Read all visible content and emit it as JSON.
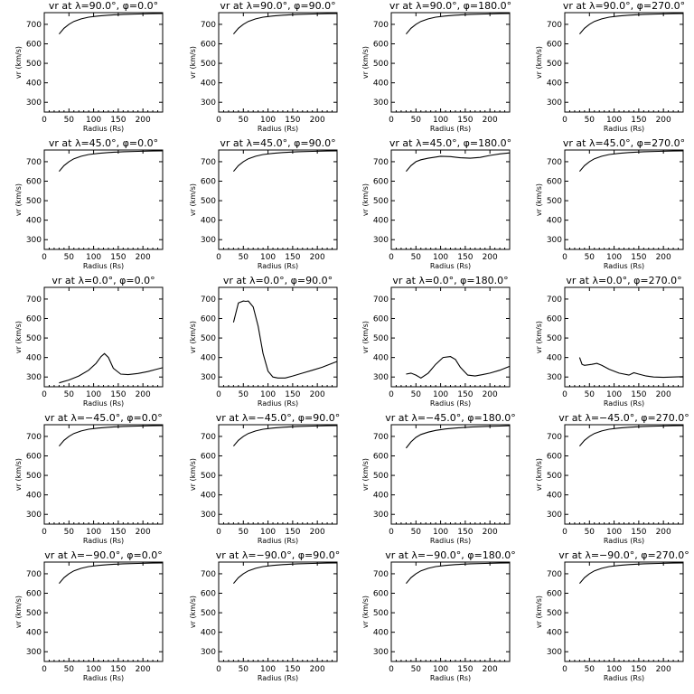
{
  "figure": {
    "xlabel": "Radius (Rs)",
    "ylabel": "vr (km/s)",
    "xlim": [
      0,
      240
    ],
    "ylim": [
      250,
      760
    ],
    "xticks": [
      0,
      50,
      100,
      150,
      200
    ],
    "yticks": [
      300,
      400,
      500,
      600,
      700
    ]
  },
  "chart_data": [
    {
      "type": "line",
      "title": "vr at λ=90.0°, φ=0.0°",
      "xlabel": "Radius (Rs)",
      "ylabel": "vr (km/s)",
      "xlim": [
        0,
        240
      ],
      "ylim": [
        250,
        760
      ],
      "series": [
        {
          "x": [
            30,
            40,
            50,
            60,
            75,
            90,
            110,
            130,
            160,
            190,
            220,
            240
          ],
          "y": [
            650,
            680,
            700,
            715,
            728,
            737,
            743,
            747,
            751,
            753,
            755,
            756
          ]
        }
      ]
    },
    {
      "type": "line",
      "title": "vr at λ=90.0°, φ=90.0°",
      "xlabel": "Radius (Rs)",
      "ylabel": "vr (km/s)",
      "xlim": [
        0,
        240
      ],
      "ylim": [
        250,
        760
      ],
      "series": [
        {
          "x": [
            30,
            40,
            50,
            60,
            75,
            90,
            110,
            130,
            160,
            190,
            220,
            240
          ],
          "y": [
            650,
            680,
            700,
            715,
            728,
            737,
            743,
            747,
            751,
            753,
            755,
            756
          ]
        }
      ]
    },
    {
      "type": "line",
      "title": "vr at λ=90.0°, φ=180.0°",
      "xlabel": "Radius (Rs)",
      "ylabel": "vr (km/s)",
      "xlim": [
        0,
        240
      ],
      "ylim": [
        250,
        760
      ],
      "series": [
        {
          "x": [
            30,
            40,
            50,
            60,
            75,
            90,
            110,
            130,
            160,
            190,
            220,
            240
          ],
          "y": [
            650,
            680,
            700,
            715,
            728,
            737,
            743,
            747,
            751,
            753,
            755,
            756
          ]
        }
      ]
    },
    {
      "type": "line",
      "title": "vr at λ=90.0°, φ=270.0°",
      "xlabel": "Radius (Rs)",
      "ylabel": "vr (km/s)",
      "xlim": [
        0,
        240
      ],
      "ylim": [
        250,
        760
      ],
      "series": [
        {
          "x": [
            30,
            40,
            50,
            60,
            75,
            90,
            110,
            130,
            160,
            190,
            220,
            240
          ],
          "y": [
            650,
            680,
            700,
            715,
            728,
            737,
            743,
            747,
            751,
            753,
            755,
            756
          ]
        }
      ]
    },
    {
      "type": "line",
      "title": "vr at λ=45.0°, φ=0.0°",
      "xlabel": "Radius (Rs)",
      "ylabel": "vr (km/s)",
      "xlim": [
        0,
        240
      ],
      "ylim": [
        250,
        760
      ],
      "series": [
        {
          "x": [
            30,
            40,
            50,
            60,
            75,
            90,
            110,
            130,
            160,
            190,
            220,
            240
          ],
          "y": [
            650,
            680,
            700,
            715,
            728,
            737,
            743,
            747,
            751,
            753,
            755,
            756
          ]
        }
      ]
    },
    {
      "type": "line",
      "title": "vr at λ=45.0°, φ=90.0°",
      "xlabel": "Radius (Rs)",
      "ylabel": "vr (km/s)",
      "xlim": [
        0,
        240
      ],
      "ylim": [
        250,
        760
      ],
      "series": [
        {
          "x": [
            30,
            40,
            50,
            60,
            75,
            90,
            110,
            130,
            160,
            190,
            220,
            240
          ],
          "y": [
            650,
            680,
            700,
            715,
            728,
            737,
            743,
            747,
            751,
            753,
            755,
            756
          ]
        }
      ]
    },
    {
      "type": "line",
      "title": "vr at λ=45.0°, φ=180.0°",
      "xlabel": "Radius (Rs)",
      "ylabel": "vr (km/s)",
      "xlim": [
        0,
        240
      ],
      "ylim": [
        250,
        760
      ],
      "series": [
        {
          "x": [
            30,
            40,
            50,
            60,
            75,
            90,
            100,
            120,
            140,
            160,
            180,
            200,
            220,
            240
          ],
          "y": [
            650,
            680,
            700,
            710,
            718,
            724,
            728,
            726,
            720,
            718,
            722,
            732,
            740,
            745
          ]
        }
      ]
    },
    {
      "type": "line",
      "title": "vr at λ=45.0°, φ=270.0°",
      "xlabel": "Radius (Rs)",
      "ylabel": "vr (km/s)",
      "xlim": [
        0,
        240
      ],
      "ylim": [
        250,
        760
      ],
      "series": [
        {
          "x": [
            30,
            40,
            50,
            60,
            75,
            90,
            110,
            130,
            160,
            190,
            220,
            240
          ],
          "y": [
            650,
            680,
            700,
            715,
            728,
            737,
            743,
            747,
            751,
            753,
            755,
            756
          ]
        }
      ]
    },
    {
      "type": "line",
      "title": "vr at λ=0.0°, φ=0.0°",
      "xlabel": "Radius (Rs)",
      "ylabel": "vr (km/s)",
      "xlim": [
        0,
        240
      ],
      "ylim": [
        250,
        760
      ],
      "series": [
        {
          "x": [
            30,
            50,
            70,
            90,
            105,
            115,
            122,
            130,
            140,
            155,
            170,
            190,
            210,
            225,
            240
          ],
          "y": [
            270,
            285,
            305,
            335,
            370,
            405,
            420,
            400,
            345,
            315,
            312,
            318,
            328,
            338,
            348
          ]
        }
      ]
    },
    {
      "type": "line",
      "title": "vr at λ=0.0°, φ=90.0°",
      "xlabel": "Radius (Rs)",
      "ylabel": "vr (km/s)",
      "xlim": [
        0,
        240
      ],
      "ylim": [
        250,
        760
      ],
      "series": [
        {
          "x": [
            30,
            40,
            50,
            55,
            60,
            70,
            80,
            90,
            100,
            110,
            120,
            135,
            150,
            170,
            190,
            210,
            230,
            240
          ],
          "y": [
            580,
            680,
            690,
            688,
            690,
            660,
            560,
            420,
            330,
            300,
            295,
            295,
            305,
            320,
            335,
            350,
            370,
            380
          ]
        }
      ]
    },
    {
      "type": "line",
      "title": "vr at λ=0.0°, φ=180.0°",
      "xlabel": "Radius (Rs)",
      "ylabel": "vr (km/s)",
      "xlim": [
        0,
        240
      ],
      "ylim": [
        250,
        760
      ],
      "series": [
        {
          "x": [
            30,
            40,
            50,
            60,
            75,
            90,
            105,
            120,
            130,
            140,
            155,
            170,
            185,
            200,
            220,
            240
          ],
          "y": [
            315,
            320,
            310,
            295,
            320,
            365,
            400,
            405,
            390,
            350,
            310,
            305,
            312,
            320,
            335,
            355
          ]
        }
      ]
    },
    {
      "type": "line",
      "title": "vr at λ=0.0°, φ=270.0°",
      "xlabel": "Radius (Rs)",
      "ylabel": "vr (km/s)",
      "xlim": [
        0,
        240
      ],
      "ylim": [
        250,
        760
      ],
      "series": [
        {
          "x": [
            30,
            35,
            40,
            55,
            65,
            75,
            90,
            110,
            130,
            140,
            150,
            165,
            180,
            200,
            220,
            240
          ],
          "y": [
            400,
            365,
            360,
            365,
            370,
            360,
            340,
            320,
            310,
            322,
            315,
            305,
            300,
            298,
            300,
            302
          ]
        }
      ]
    },
    {
      "type": "line",
      "title": "vr at λ=−45.0°, φ=0.0°",
      "xlabel": "Radius (Rs)",
      "ylabel": "vr (km/s)",
      "xlim": [
        0,
        240
      ],
      "ylim": [
        250,
        760
      ],
      "series": [
        {
          "x": [
            30,
            40,
            50,
            60,
            75,
            90,
            110,
            130,
            160,
            190,
            220,
            240
          ],
          "y": [
            650,
            680,
            700,
            715,
            728,
            737,
            743,
            747,
            751,
            753,
            755,
            756
          ]
        }
      ]
    },
    {
      "type": "line",
      "title": "vr at λ=−45.0°, φ=90.0°",
      "xlabel": "Radius (Rs)",
      "ylabel": "vr (km/s)",
      "xlim": [
        0,
        240
      ],
      "ylim": [
        250,
        760
      ],
      "series": [
        {
          "x": [
            30,
            40,
            50,
            60,
            75,
            90,
            110,
            130,
            160,
            190,
            220,
            240
          ],
          "y": [
            650,
            680,
            700,
            715,
            728,
            737,
            743,
            747,
            751,
            753,
            755,
            756
          ]
        }
      ]
    },
    {
      "type": "line",
      "title": "vr at λ=−45.0°, φ=180.0°",
      "xlabel": "Radius (Rs)",
      "ylabel": "vr (km/s)",
      "xlim": [
        0,
        240
      ],
      "ylim": [
        250,
        760
      ],
      "series": [
        {
          "x": [
            30,
            40,
            50,
            60,
            75,
            90,
            110,
            130,
            160,
            190,
            220,
            240
          ],
          "y": [
            640,
            672,
            695,
            710,
            722,
            731,
            738,
            743,
            748,
            751,
            753,
            755
          ]
        }
      ]
    },
    {
      "type": "line",
      "title": "vr at λ=−45.0°, φ=270.0°",
      "xlabel": "Radius (Rs)",
      "ylabel": "vr (km/s)",
      "xlim": [
        0,
        240
      ],
      "ylim": [
        250,
        760
      ],
      "series": [
        {
          "x": [
            30,
            40,
            50,
            60,
            75,
            90,
            110,
            130,
            160,
            190,
            220,
            240
          ],
          "y": [
            650,
            680,
            700,
            715,
            728,
            737,
            743,
            747,
            751,
            753,
            755,
            756
          ]
        }
      ]
    },
    {
      "type": "line",
      "title": "vr at λ=−90.0°, φ=0.0°",
      "xlabel": "Radius (Rs)",
      "ylabel": "vr (km/s)",
      "xlim": [
        0,
        240
      ],
      "ylim": [
        250,
        760
      ],
      "series": [
        {
          "x": [
            30,
            40,
            50,
            60,
            75,
            90,
            110,
            130,
            160,
            190,
            220,
            240
          ],
          "y": [
            650,
            680,
            700,
            715,
            728,
            737,
            743,
            747,
            751,
            753,
            755,
            756
          ]
        }
      ]
    },
    {
      "type": "line",
      "title": "vr at λ=−90.0°, φ=90.0°",
      "xlabel": "Radius (Rs)",
      "ylabel": "vr (km/s)",
      "xlim": [
        0,
        240
      ],
      "ylim": [
        250,
        760
      ],
      "series": [
        {
          "x": [
            30,
            40,
            50,
            60,
            75,
            90,
            110,
            130,
            160,
            190,
            220,
            240
          ],
          "y": [
            650,
            680,
            700,
            715,
            728,
            737,
            743,
            747,
            751,
            753,
            755,
            756
          ]
        }
      ]
    },
    {
      "type": "line",
      "title": "vr at λ=−90.0°, φ=180.0°",
      "xlabel": "Radius (Rs)",
      "ylabel": "vr (km/s)",
      "xlim": [
        0,
        240
      ],
      "ylim": [
        250,
        760
      ],
      "series": [
        {
          "x": [
            30,
            40,
            50,
            60,
            75,
            90,
            110,
            130,
            160,
            190,
            220,
            240
          ],
          "y": [
            650,
            680,
            700,
            715,
            728,
            737,
            743,
            747,
            751,
            753,
            755,
            756
          ]
        }
      ]
    },
    {
      "type": "line",
      "title": "vr at λ=−90.0°, φ=270.0°",
      "xlabel": "Radius (Rs)",
      "ylabel": "vr (km/s)",
      "xlim": [
        0,
        240
      ],
      "ylim": [
        250,
        760
      ],
      "series": [
        {
          "x": [
            30,
            40,
            50,
            60,
            75,
            90,
            110,
            130,
            160,
            190,
            220,
            240
          ],
          "y": [
            650,
            680,
            700,
            715,
            728,
            737,
            743,
            747,
            751,
            753,
            755,
            756
          ]
        }
      ]
    }
  ]
}
